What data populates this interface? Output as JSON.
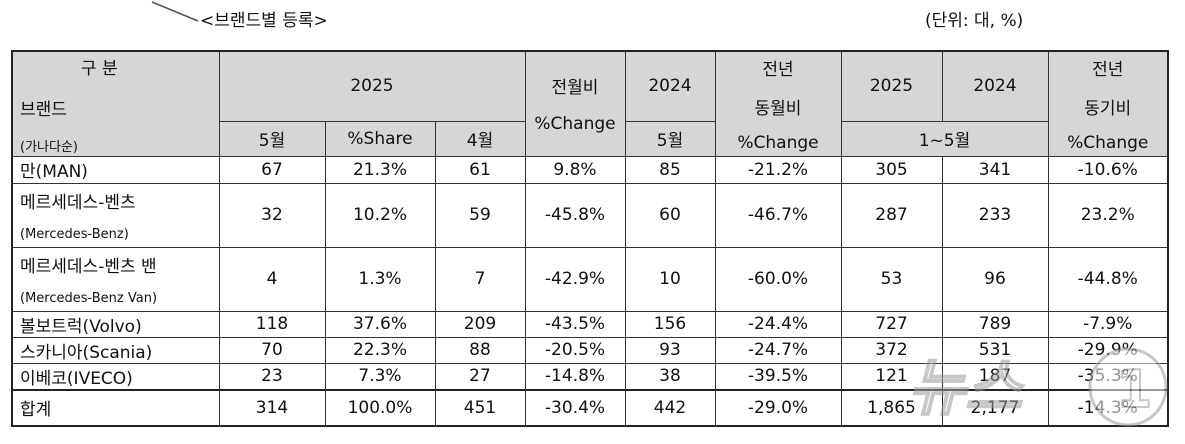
{
  "captions": {
    "title": "<브랜드별 등록>",
    "unit": "(단위: 대, %)"
  },
  "header": {
    "gubun_top": "구 분",
    "gubun_brand": "브랜드",
    "gubun_order": "(가나다순)",
    "year_2025": "2025",
    "mom_label": "전월비",
    "mom_change": "%Change",
    "year_2024": "2024",
    "yoy_top": "전년",
    "yoy_mid": "동월비",
    "yoy_change": "%Change",
    "ytd_2025": "2025",
    "ytd_2024": "2024",
    "ytd_yoy_top": "전년",
    "ytd_yoy_mid": "동기비",
    "ytd_yoy_change": "%Change",
    "sub_may": "5월",
    "sub_share": "%Share",
    "sub_apr": "4월",
    "sub_may_2024": "5월",
    "sub_jan_may": "1~5월"
  },
  "rows": [
    {
      "brand": "만(MAN)",
      "brand_en": "",
      "may": "67",
      "share": "21.3%",
      "apr": "61",
      "mom": "9.8%",
      "may24": "85",
      "yoy": "-21.2%",
      "ytd25": "305",
      "ytd24": "341",
      "ytd_yoy": "-10.6%"
    },
    {
      "brand": "메르세데스-벤츠",
      "brand_en": "(Mercedes-Benz)",
      "may": "32",
      "share": "10.2%",
      "apr": "59",
      "mom": "-45.8%",
      "may24": "60",
      "yoy": "-46.7%",
      "ytd25": "287",
      "ytd24": "233",
      "ytd_yoy": "23.2%"
    },
    {
      "brand": "메르세데스-벤츠 밴",
      "brand_en": "(Mercedes-Benz Van)",
      "may": "4",
      "share": "1.3%",
      "apr": "7",
      "mom": "-42.9%",
      "may24": "10",
      "yoy": "-60.0%",
      "ytd25": "53",
      "ytd24": "96",
      "ytd_yoy": "-44.8%"
    },
    {
      "brand": "볼보트럭(Volvo)",
      "brand_en": "",
      "may": "118",
      "share": "37.6%",
      "apr": "209",
      "mom": "-43.5%",
      "may24": "156",
      "yoy": "-24.4%",
      "ytd25": "727",
      "ytd24": "789",
      "ytd_yoy": "-7.9%"
    },
    {
      "brand": "스카니아(Scania)",
      "brand_en": "",
      "may": "70",
      "share": "22.3%",
      "apr": "88",
      "mom": "-20.5%",
      "may24": "93",
      "yoy": "-24.7%",
      "ytd25": "372",
      "ytd24": "531",
      "ytd_yoy": "-29.9%"
    },
    {
      "brand": "이베코(IVECO)",
      "brand_en": "",
      "may": "23",
      "share": "7.3%",
      "apr": "27",
      "mom": "-14.8%",
      "may24": "38",
      "yoy": "-39.5%",
      "ytd25": "121",
      "ytd24": "187",
      "ytd_yoy": "-35.3%"
    },
    {
      "brand": "합계",
      "brand_en": "",
      "may": "314",
      "share": "100.0%",
      "apr": "451",
      "mom": "-30.4%",
      "may24": "442",
      "yoy": "-29.0%",
      "ytd25": "1,865",
      "ytd24": "2,177",
      "ytd_yoy": "-14.3%"
    }
  ],
  "watermark": {
    "text": "뉴스1",
    "icon": "news1-logo-watermark"
  }
}
